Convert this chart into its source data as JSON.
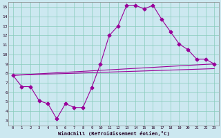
{
  "xlabel": "Windchill (Refroidissement éolien,°C)",
  "xlim": [
    -0.5,
    23.5
  ],
  "ylim": [
    2.5,
    15.5
  ],
  "yticks": [
    3,
    4,
    5,
    6,
    7,
    8,
    9,
    10,
    11,
    12,
    13,
    14,
    15
  ],
  "xticks": [
    0,
    1,
    2,
    3,
    4,
    5,
    6,
    7,
    8,
    9,
    10,
    11,
    12,
    13,
    14,
    15,
    16,
    17,
    18,
    19,
    20,
    21,
    22,
    23
  ],
  "line_color": "#990099",
  "bg_color": "#cce8f0",
  "grid_color": "#88ccbb",
  "line1_x": [
    0,
    1,
    2,
    3,
    4,
    5,
    6,
    7,
    8,
    9,
    10,
    11,
    12,
    13,
    14,
    15,
    16,
    17,
    18,
    19,
    20,
    21,
    22,
    23
  ],
  "line1_y": [
    7.8,
    6.6,
    6.6,
    5.1,
    4.8,
    3.2,
    4.8,
    4.4,
    4.4,
    6.5,
    9.0,
    12.0,
    13.0,
    15.2,
    15.2,
    14.8,
    15.2,
    13.7,
    12.4,
    11.1,
    10.5,
    9.5,
    9.5,
    9.0
  ],
  "line2_x": [
    0,
    23
  ],
  "line2_y": [
    7.8,
    9.0
  ],
  "line3_x": [
    0,
    23
  ],
  "line3_y": [
    7.8,
    8.5
  ],
  "marker": "D",
  "markersize": 2.5,
  "linewidth": 0.8
}
